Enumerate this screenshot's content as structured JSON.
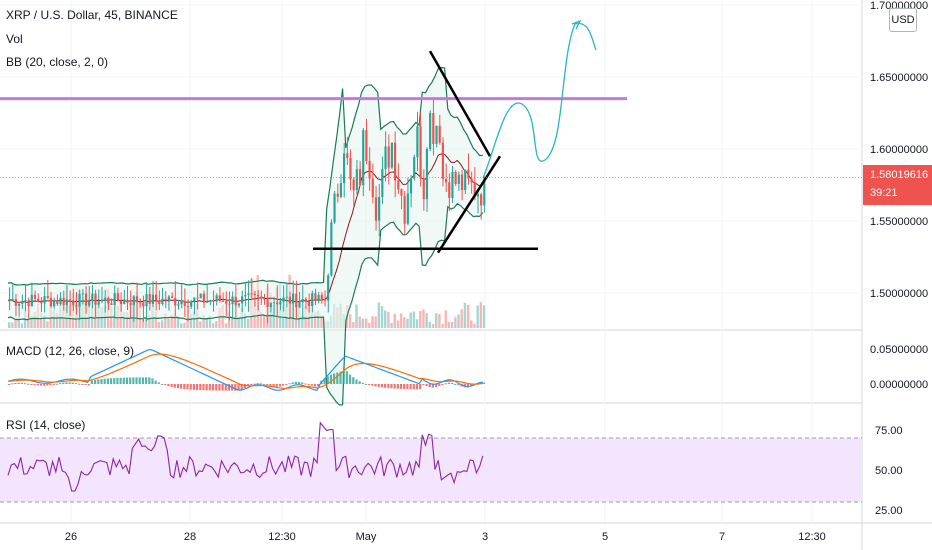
{
  "header": {
    "symbol_line": "XRP / U.S. Dollar, 45, BINANCE",
    "vol_label": "Vol",
    "bb_label": "BB (20, close, 2, 0)",
    "currency": "USD"
  },
  "last_price": {
    "value": "1.58019616",
    "countdown": "39:21",
    "color": "#ef5350"
  },
  "colors": {
    "up": "#26a69a",
    "down": "#ef5350",
    "bb_band": "#1b7a57",
    "bb_basis": "#8b1a1a",
    "bb_fill": "#e8f5f0",
    "resistance": "#c678dd",
    "projection": "#26b5c9",
    "trendline": "#000000",
    "macd": "#2196f3",
    "signal": "#ff6d00",
    "rsi": "#8e24aa",
    "rsi_band": "#f3e5fd"
  },
  "price_axis": {
    "ticks": [
      "1.70000000",
      "1.65000000",
      "1.60000000",
      "1.55000000",
      "1.50000000"
    ]
  },
  "time_axis": {
    "ticks": [
      "26",
      "28",
      "12:30",
      "May",
      "3",
      "5",
      "7",
      "12:30"
    ]
  },
  "macd_pane": {
    "label": "MACD (12, 26, close, 9)",
    "ticks": [
      "0.05000000",
      "0.00000000"
    ]
  },
  "rsi_pane": {
    "label": "RSI (14, close)",
    "ticks": [
      "75.00",
      "50.00",
      "25.00"
    ]
  },
  "chart_data": [
    {
      "type": "candlestick",
      "title": "XRP / U.S. Dollar, 45, BINANCE",
      "ylim": [
        1.47,
        1.7
      ],
      "resistance_level": 1.635,
      "support_level": 1.53,
      "symmetric_triangle": {
        "upper_start": 1.668,
        "lower_start": 1.528,
        "apex": 1.595
      },
      "last_price": 1.58019616,
      "legend": [
        "Vol",
        "BB (20, close, 2, 0)"
      ]
    },
    {
      "type": "line",
      "title": "MACD (12, 26, close, 9)",
      "ylim": [
        -0.015,
        0.06
      ],
      "series": [
        "macd",
        "signal",
        "histogram"
      ]
    },
    {
      "type": "line",
      "title": "RSI (14, close)",
      "ylim": [
        20,
        85
      ],
      "levels": [
        70,
        30
      ]
    }
  ]
}
